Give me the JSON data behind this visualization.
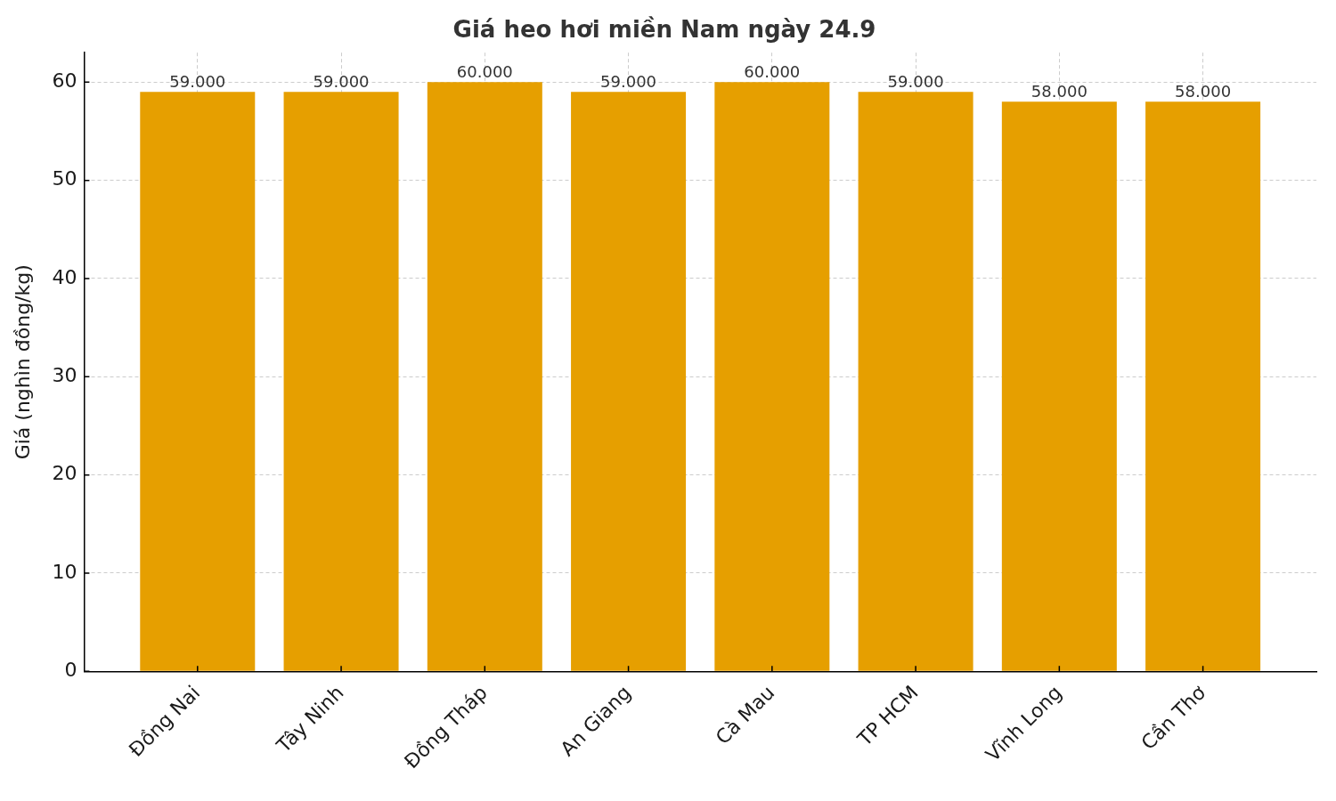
{
  "chart_data": {
    "type": "bar",
    "title": "Giá heo hơi miền Nam ngày 24.9",
    "ylabel": "Giá (nghìn đồng/kg)",
    "categories": [
      "Đồng Nai",
      "Tây Ninh",
      "Đồng Tháp",
      "An Giang",
      "Cà Mau",
      "TP HCM",
      "Vĩnh Long",
      "Cần Thơ"
    ],
    "values": [
      59,
      59,
      60,
      59,
      60,
      59,
      58,
      58
    ],
    "color": "#e69f00",
    "value_labels": [
      "59.000",
      "59.000",
      "60.000",
      "59.000",
      "60.000",
      "59.000",
      "58.000",
      "58.000"
    ],
    "ylim": [
      0,
      63
    ],
    "yticks": [
      0,
      10,
      20,
      30,
      40,
      50,
      60
    ],
    "grid": true
  }
}
